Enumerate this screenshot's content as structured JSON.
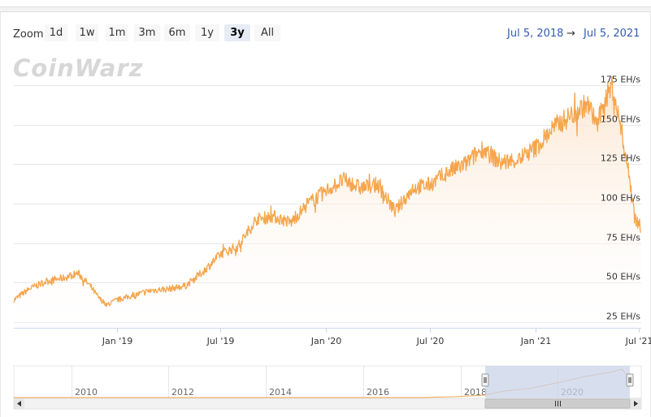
{
  "toolbar": {
    "zoom_label": "Zoom",
    "buttons": [
      "1d",
      "1w",
      "1m",
      "3m",
      "6m",
      "1y",
      "3y",
      "All"
    ],
    "active": "3y"
  },
  "range": {
    "from": "Jul 5, 2018",
    "arrow": "→",
    "to": "Jul 5, 2021"
  },
  "logo_text": "CoinWarz",
  "colors": {
    "line": "#f5a54d",
    "area_top": "#fbe9d8",
    "navigator_mask": "#c9d4ea",
    "link": "#335cad"
  },
  "chart_data": {
    "type": "line",
    "title": "",
    "xlabel": "",
    "ylabel": "",
    "y_unit": "EH/s",
    "x_range": [
      "2018-07-05",
      "2021-07-05"
    ],
    "ylim": [
      25,
      175
    ],
    "y_ticks": [
      "25 EH/s",
      "50 EH/s",
      "75 EH/s",
      "100 EH/s",
      "125 EH/s",
      "150 EH/s",
      "175 EH/s"
    ],
    "y_tick_values": [
      25,
      50,
      75,
      100,
      125,
      150,
      175
    ],
    "x_ticks": [
      "Jan '19",
      "Jul '19",
      "Jan '20",
      "Jul '20",
      "Jan '21",
      "Jul '21"
    ],
    "x_tick_dates": [
      "2019-01-01",
      "2019-07-01",
      "2020-01-01",
      "2020-07-01",
      "2021-01-01",
      "2021-07-01"
    ],
    "grid": true,
    "series": [
      {
        "points": [
          [
            "2018-07-05",
            39
          ],
          [
            "2018-08-01",
            46
          ],
          [
            "2018-09-01",
            51
          ],
          [
            "2018-10-01",
            53
          ],
          [
            "2018-10-25",
            56
          ],
          [
            "2018-11-15",
            48
          ],
          [
            "2018-12-01",
            40
          ],
          [
            "2018-12-15",
            36
          ],
          [
            "2019-01-01",
            39
          ],
          [
            "2019-02-01",
            42
          ],
          [
            "2019-03-01",
            45
          ],
          [
            "2019-04-01",
            46
          ],
          [
            "2019-05-01",
            48
          ],
          [
            "2019-06-01",
            57
          ],
          [
            "2019-07-01",
            68
          ],
          [
            "2019-08-01",
            73
          ],
          [
            "2019-09-01",
            90
          ],
          [
            "2019-10-01",
            92
          ],
          [
            "2019-11-01",
            88
          ],
          [
            "2019-12-01",
            100
          ],
          [
            "2020-01-01",
            108
          ],
          [
            "2020-02-01",
            115
          ],
          [
            "2020-03-01",
            110
          ],
          [
            "2020-04-01",
            112
          ],
          [
            "2020-05-01",
            95
          ],
          [
            "2020-06-01",
            110
          ],
          [
            "2020-07-01",
            112
          ],
          [
            "2020-08-01",
            120
          ],
          [
            "2020-09-01",
            125
          ],
          [
            "2020-10-01",
            135
          ],
          [
            "2020-11-01",
            126
          ],
          [
            "2020-12-01",
            128
          ],
          [
            "2021-01-01",
            135
          ],
          [
            "2021-02-01",
            148
          ],
          [
            "2021-03-01",
            155
          ],
          [
            "2021-04-01",
            163
          ],
          [
            "2021-04-20",
            150
          ],
          [
            "2021-05-01",
            165
          ],
          [
            "2021-05-15",
            175
          ],
          [
            "2021-06-01",
            145
          ],
          [
            "2021-06-15",
            115
          ],
          [
            "2021-06-25",
            90
          ],
          [
            "2021-07-05",
            85
          ]
        ]
      }
    ]
  },
  "navigator": {
    "x_labels": [
      "2010",
      "2012",
      "2014",
      "2016",
      "2018",
      "2020"
    ]
  }
}
